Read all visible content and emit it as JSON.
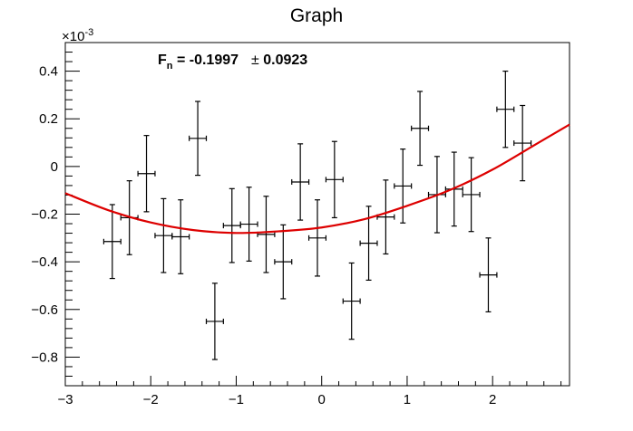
{
  "chart_data": {
    "type": "scatter",
    "title": "Graph",
    "xlabel": "",
    "ylabel": "",
    "xlim": [
      -3,
      2.9
    ],
    "ylim": [
      -0.92,
      0.52
    ],
    "y_multiplier_label": "×10",
    "y_multiplier_exponent": "-3",
    "x_ticks": [
      -3,
      -2,
      -1,
      0,
      1,
      2
    ],
    "x_tick_labels": [
      "−3",
      "−2",
      "−1",
      "0",
      "1",
      "2"
    ],
    "y_ticks": [
      -0.8,
      -0.6,
      -0.4,
      -0.2,
      0,
      0.2,
      0.4
    ],
    "y_tick_labels": [
      "−0.8",
      "−0.6",
      "−0.4",
      "−0.2",
      "0",
      "0.2",
      "0.4"
    ],
    "grid": false,
    "points": [
      {
        "x": -2.45,
        "y": -0.315,
        "xerr": 0.1,
        "yerr": 0.155
      },
      {
        "x": -2.25,
        "y": -0.215,
        "xerr": 0.1,
        "yerr": 0.155
      },
      {
        "x": -2.05,
        "y": -0.03,
        "xerr": 0.1,
        "yerr": 0.16
      },
      {
        "x": -1.85,
        "y": -0.29,
        "xerr": 0.1,
        "yerr": 0.155
      },
      {
        "x": -1.65,
        "y": -0.295,
        "xerr": 0.1,
        "yerr": 0.155
      },
      {
        "x": -1.45,
        "y": 0.118,
        "xerr": 0.1,
        "yerr": 0.155
      },
      {
        "x": -1.25,
        "y": -0.65,
        "xerr": 0.1,
        "yerr": 0.16
      },
      {
        "x": -1.05,
        "y": -0.248,
        "xerr": 0.1,
        "yerr": 0.155
      },
      {
        "x": -0.85,
        "y": -0.242,
        "xerr": 0.1,
        "yerr": 0.155
      },
      {
        "x": -0.65,
        "y": -0.285,
        "xerr": 0.1,
        "yerr": 0.16
      },
      {
        "x": -0.45,
        "y": -0.4,
        "xerr": 0.1,
        "yerr": 0.155
      },
      {
        "x": -0.25,
        "y": -0.065,
        "xerr": 0.1,
        "yerr": 0.16
      },
      {
        "x": -0.05,
        "y": -0.3,
        "xerr": 0.1,
        "yerr": 0.16
      },
      {
        "x": 0.15,
        "y": -0.055,
        "xerr": 0.1,
        "yerr": 0.16
      },
      {
        "x": 0.35,
        "y": -0.565,
        "xerr": 0.1,
        "yerr": 0.16
      },
      {
        "x": 0.55,
        "y": -0.322,
        "xerr": 0.1,
        "yerr": 0.155
      },
      {
        "x": 0.75,
        "y": -0.212,
        "xerr": 0.1,
        "yerr": 0.155
      },
      {
        "x": 0.95,
        "y": -0.082,
        "xerr": 0.1,
        "yerr": 0.155
      },
      {
        "x": 1.15,
        "y": 0.16,
        "xerr": 0.1,
        "yerr": 0.155
      },
      {
        "x": 1.35,
        "y": -0.118,
        "xerr": 0.1,
        "yerr": 0.16
      },
      {
        "x": 1.55,
        "y": -0.095,
        "xerr": 0.1,
        "yerr": 0.155
      },
      {
        "x": 1.75,
        "y": -0.118,
        "xerr": 0.1,
        "yerr": 0.155
      },
      {
        "x": 1.95,
        "y": -0.455,
        "xerr": 0.1,
        "yerr": 0.155
      },
      {
        "x": 2.15,
        "y": 0.24,
        "xerr": 0.1,
        "yerr": 0.16
      },
      {
        "x": 2.35,
        "y": 0.098,
        "xerr": 0.1,
        "yerr": 0.158
      }
    ],
    "fit": {
      "color": "#dd0000",
      "x_range": [
        -3,
        2.9
      ],
      "points": [
        {
          "x": -3.0,
          "y": -0.112
        },
        {
          "x": -2.5,
          "y": -0.183
        },
        {
          "x": -2.0,
          "y": -0.235
        },
        {
          "x": -1.5,
          "y": -0.267
        },
        {
          "x": -1.0,
          "y": -0.279
        },
        {
          "x": -0.5,
          "y": -0.272
        },
        {
          "x": 0.0,
          "y": -0.256
        },
        {
          "x": 0.5,
          "y": -0.221
        },
        {
          "x": 1.0,
          "y": -0.165
        },
        {
          "x": 1.5,
          "y": -0.099
        },
        {
          "x": 2.0,
          "y": -0.013
        },
        {
          "x": 2.5,
          "y": 0.092
        },
        {
          "x": 2.9,
          "y": 0.176
        }
      ]
    },
    "annotation": {
      "label_main": "F",
      "label_sub": "n",
      "value": " = -0.1997",
      "pm": "±",
      "error": " 0.0923"
    }
  }
}
